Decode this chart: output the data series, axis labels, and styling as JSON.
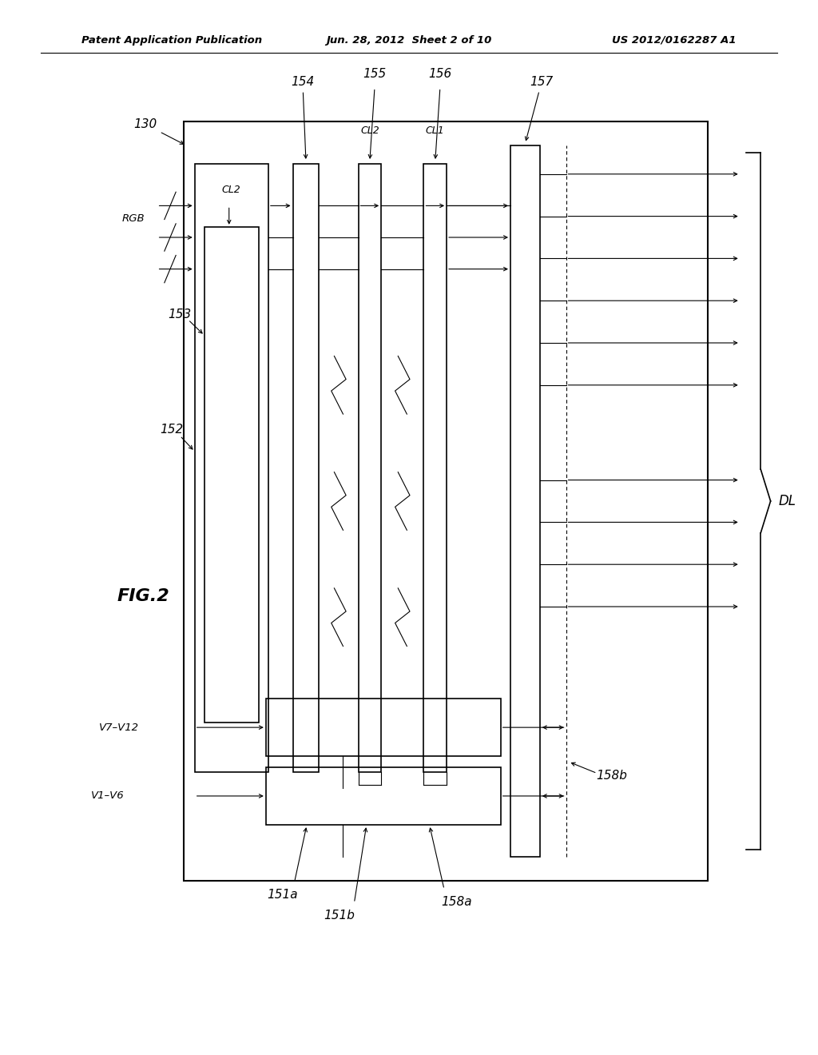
{
  "bg_color": "#ffffff",
  "header_left": "Patent Application Publication",
  "header_center": "Jun. 28, 2012  Sheet 2 of 10",
  "header_right": "US 2012/0162287 A1",
  "fig_label": "FIG.2"
}
